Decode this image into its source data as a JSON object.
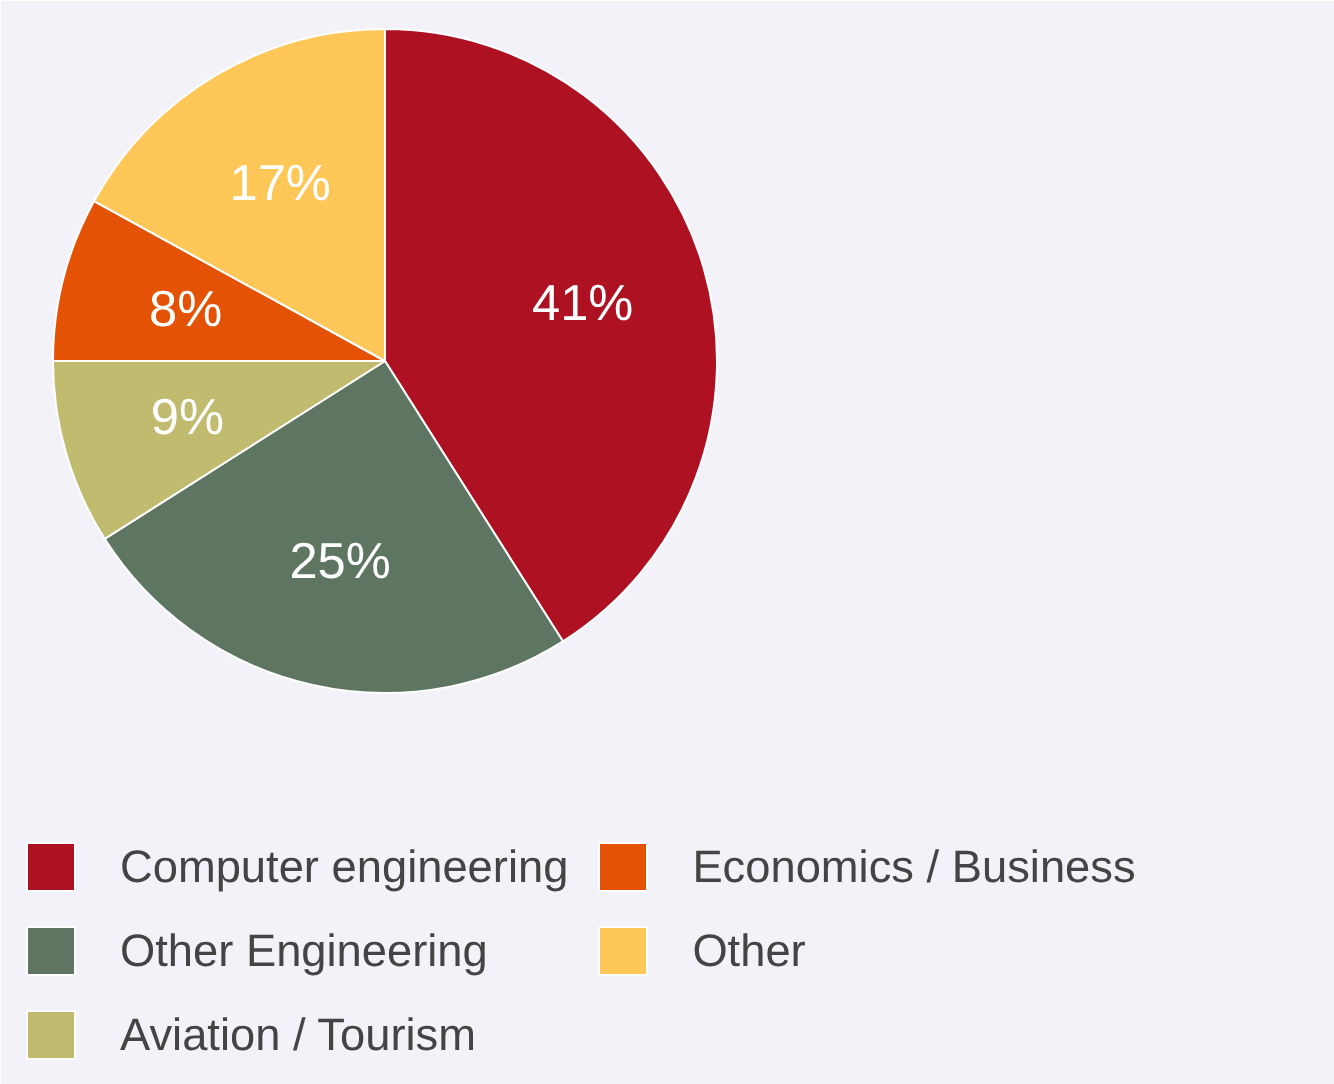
{
  "chart_data": {
    "type": "pie",
    "categories": [
      "Computer engineering",
      "Other Engineering",
      "Aviation / Tourism",
      "Economics / Business",
      "Other"
    ],
    "values": [
      41,
      25,
      9,
      8,
      17
    ],
    "colors": [
      "#ae1122",
      "#5e7562",
      "#c0bb6e",
      "#e35205",
      "#fec758"
    ],
    "value_labels": [
      "41%",
      "25%",
      "9%",
      "8%",
      "17%"
    ],
    "legend": "bottom"
  }
}
